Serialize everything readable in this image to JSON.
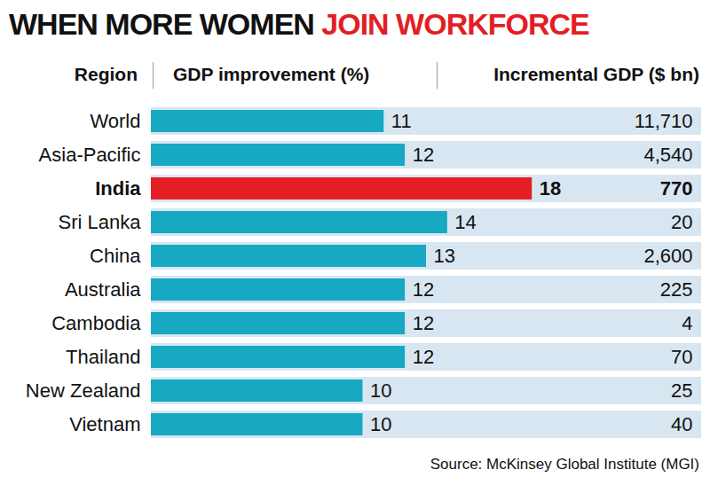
{
  "chart_data": {
    "type": "bar",
    "orientation": "horizontal",
    "title": "WHEN MORE WOMEN JOIN WORKFORCE",
    "y_label": "Region",
    "x_label": "GDP improvement (%)",
    "categories": [
      "World",
      "Asia-Pacific",
      "India",
      "Sri Lanka",
      "China",
      "Australia",
      "Cambodia",
      "Thailand",
      "New Zealand",
      "Vietnam"
    ],
    "values": [
      11,
      12,
      18,
      14,
      13,
      12,
      12,
      12,
      10,
      10
    ],
    "colors": [
      "#17a8c2",
      "#17a8c2",
      "#e31e24",
      "#17a8c2",
      "#17a8c2",
      "#17a8c2",
      "#17a8c2",
      "#17a8c2",
      "#17a8c2",
      "#17a8c2"
    ],
    "data_labels": true,
    "xlim": [
      0,
      26
    ],
    "xticks": [],
    "tick_labels": "y",
    "grid": false,
    "incremental_gdp": {
      "title": "Incremental GDP ($ bn)",
      "values": [
        11710,
        4540,
        770,
        20,
        2600,
        225,
        4,
        70,
        25,
        40
      ],
      "value_labels": [
        "11,710",
        "4,540",
        "770",
        "20",
        "2,600",
        "225",
        "4",
        "70",
        "25",
        "40"
      ]
    },
    "caption": "Source: McKinsey Global Institute (MGI)"
  }
}
